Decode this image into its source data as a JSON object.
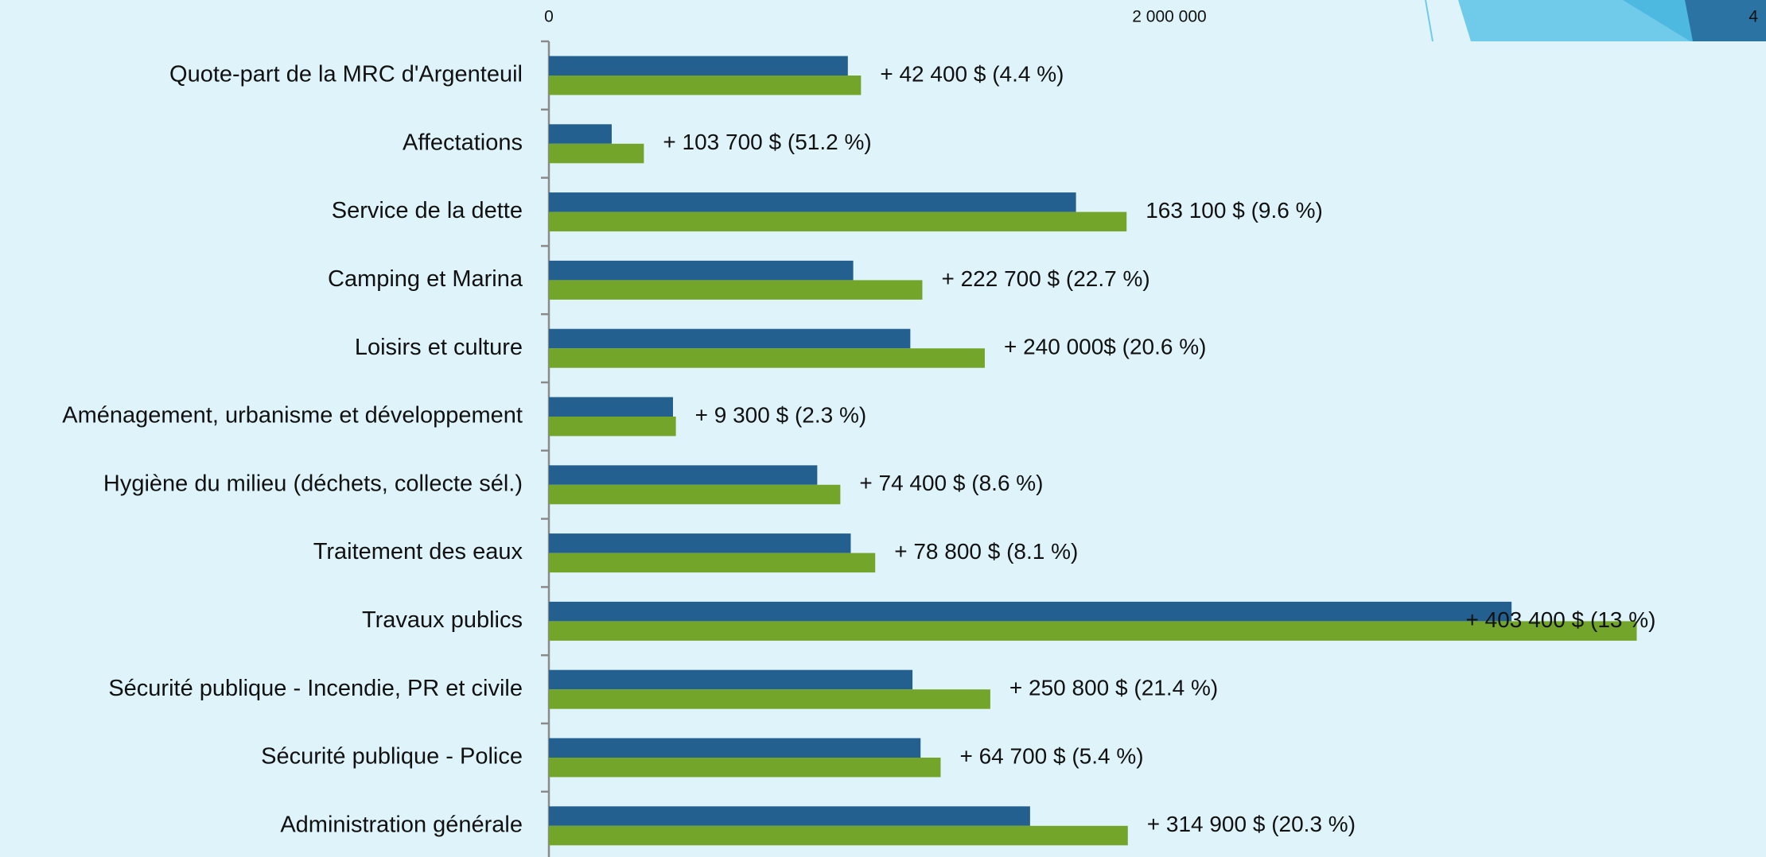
{
  "chart_data": {
    "type": "bar",
    "orientation": "horizontal",
    "categories": [
      "Quote-part de la MRC d'Argenteuil",
      "Affectations",
      "Service de la dette",
      "Camping et Marina",
      "Loisirs et culture",
      "Aménagement, urbanisme et développement",
      "Hygiène du milieu (déchets, collecte sél.)",
      "Traitement des eaux",
      "Travaux publics",
      "Sécurité publique - Incendie, PR et civile",
      "Sécurité publique - Police",
      "Administration générale"
    ],
    "series": [
      {
        "color": "#23608f",
        "values": [
          963600,
          202500,
          1699000,
          981000,
          1165000,
          400000,
          865000,
          973000,
          3103000,
          1172000,
          1198000,
          1551000
        ]
      },
      {
        "color": "#72a52a",
        "values": [
          1006000,
          306200,
          1862100,
          1203700,
          1405000,
          409300,
          939400,
          1051800,
          3506400,
          1422800,
          1262700,
          1866000
        ]
      }
    ],
    "annotations": [
      "+ 42 400 $ (4.4 %)",
      "+ 103 700 $ (51.2 %)",
      "163 100 $ (9.6 %)",
      "+ 222 700 $ (22.7 %)",
      "+ 240 000$ (20.6 %)",
      "+ 9 300 $ (2.3 %)",
      "+ 74 400 $ (8.6 %)",
      "+ 78 800 $ (8.1 %)",
      "+ 403 400 $ (13 %)",
      "+ 250 800 $ (21.4 %)",
      "+ 64 700 $ (5.4 %)",
      "+ 314 900 $ (20.3 %)"
    ],
    "xlim": [
      0,
      4000000
    ],
    "xticks": [
      0,
      {
        "value": 2000000,
        "label": "2 000 000"
      }
    ],
    "page_number": "4"
  }
}
